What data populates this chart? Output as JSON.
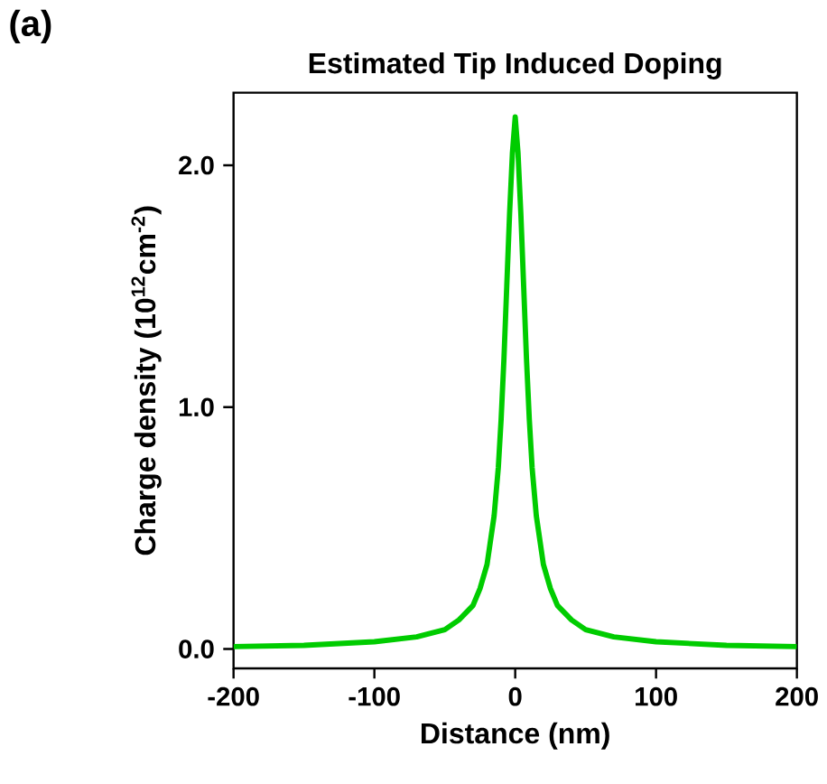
{
  "chart_data": {
    "type": "line",
    "title": "Estimated Tip Induced Doping",
    "xlabel": "Distance (nm)",
    "ylabel": "Charge density (10$^{12}$cm$^{-2}$)",
    "annotations": [
      "(a)"
    ],
    "x": [
      -200,
      -150,
      -100,
      -70,
      -50,
      -40,
      -30,
      -25,
      -20,
      -15,
      -12,
      -10,
      -8,
      -6,
      -4,
      -2,
      0,
      2,
      4,
      6,
      8,
      10,
      12,
      15,
      20,
      25,
      30,
      40,
      50,
      70,
      100,
      150,
      200
    ],
    "series": [
      {
        "color": "#00cc00",
        "values": [
          0.01,
          0.015,
          0.03,
          0.05,
          0.08,
          0.12,
          0.18,
          0.25,
          0.35,
          0.55,
          0.75,
          0.95,
          1.2,
          1.5,
          1.8,
          2.05,
          2.2,
          2.05,
          1.8,
          1.5,
          1.2,
          0.95,
          0.75,
          0.55,
          0.35,
          0.25,
          0.18,
          0.12,
          0.08,
          0.05,
          0.03,
          0.015,
          0.01
        ]
      }
    ],
    "xlim": [
      -200,
      200
    ],
    "ylim": [
      -0.08,
      2.3
    ],
    "xticks": [
      -200,
      -100,
      0,
      100,
      200
    ],
    "yticks": [
      {
        "value": 0,
        "label": "0.0"
      },
      {
        "value": 1,
        "label": "1.0"
      },
      {
        "value": 2,
        "label": "2.0"
      }
    ],
    "marker": "none",
    "line_style": "solid"
  }
}
